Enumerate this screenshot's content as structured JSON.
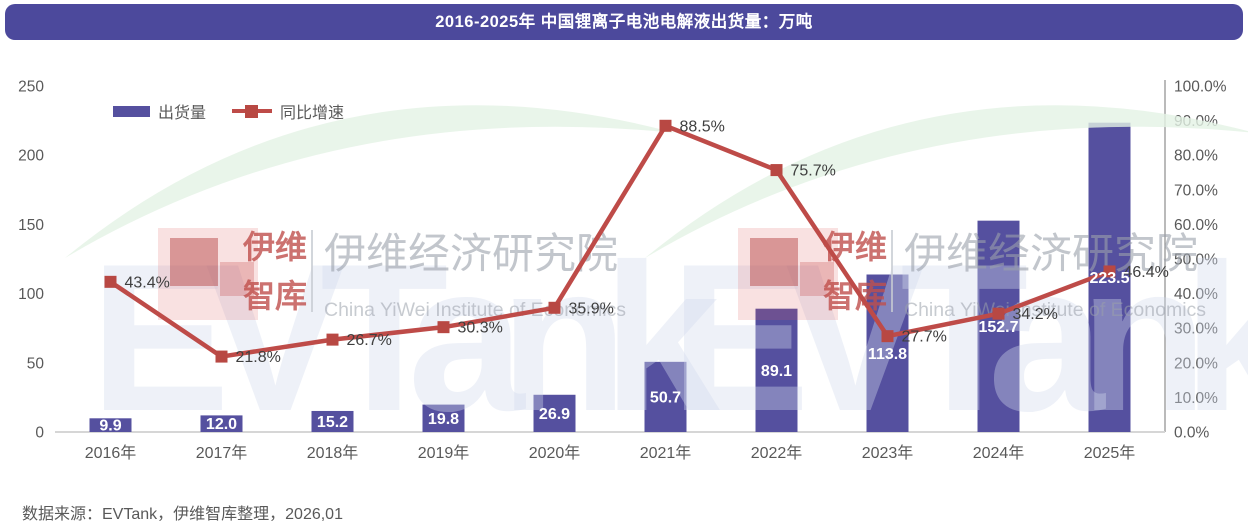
{
  "header": {
    "title": "2016-2025年 中国锂离子电池电解液出货量：万吨"
  },
  "legend": {
    "bar_label": "出货量",
    "line_label": "同比增速"
  },
  "footer": {
    "source": "数据来源：EVTank，伊维智库整理，2026,01"
  },
  "watermark": {
    "brand": "EVTank",
    "stamp_line1": "伊维",
    "stamp_line2": "智库",
    "institute_cn": "伊维经济研究院",
    "institute_en": "China YiWei Institute of Economics"
  },
  "colors": {
    "title_bg": "#4C499C",
    "bar": "#55509F",
    "line": "#BE4B48",
    "marker": "#B84843",
    "axis_text": "#595959",
    "line_label_text": "#3F3F3F",
    "bar_label_text": "#FFFFFF",
    "baseline": "#D6D6D6",
    "right_axis_line": "#8C8C8C",
    "watermark_green": "#E3F2E5",
    "watermark_red": "#C0504D",
    "watermark_gray": "#9BA1AB",
    "watermark_blue": "#D3DAEC"
  },
  "chart_data": {
    "type": "bar",
    "title": "2016-2025年 中国锂离子电池电解液出货量：万吨",
    "unit": "万吨",
    "categories": [
      "2016年",
      "2017年",
      "2018年",
      "2019年",
      "2020年",
      "2021年",
      "2022年",
      "2023年",
      "2024年",
      "2025年"
    ],
    "series": [
      {
        "name": "出货量",
        "type": "bar",
        "axis": "left",
        "values": [
          9.9,
          12.0,
          15.2,
          19.8,
          26.9,
          50.7,
          89.1,
          113.8,
          152.7,
          223.5
        ],
        "labels": [
          "9.9",
          "12.0",
          "15.2",
          "19.8",
          "26.9",
          "50.7",
          "89.1",
          "113.8",
          "152.7",
          "223.5"
        ]
      },
      {
        "name": "同比增速",
        "type": "line",
        "axis": "right",
        "values": [
          43.4,
          21.8,
          26.7,
          30.3,
          35.9,
          88.5,
          75.7,
          27.7,
          34.2,
          46.4
        ],
        "labels": [
          "43.4%",
          "21.8%",
          "26.7%",
          "30.3%",
          "35.9%",
          "88.5%",
          "75.7%",
          "27.7%",
          "34.2%",
          "46.4%"
        ]
      }
    ],
    "left_axis": {
      "min": 0,
      "max": 250,
      "step": 50,
      "ticks": [
        "0",
        "50",
        "100",
        "150",
        "200",
        "250"
      ]
    },
    "right_axis": {
      "min": 0,
      "max": 100,
      "step": 10,
      "ticks": [
        "0.0%",
        "10.0%",
        "20.0%",
        "30.0%",
        "40.0%",
        "50.0%",
        "60.0%",
        "70.0%",
        "80.0%",
        "90.0%",
        "100.0%"
      ]
    },
    "grid": false,
    "legend_position": "top-left"
  }
}
